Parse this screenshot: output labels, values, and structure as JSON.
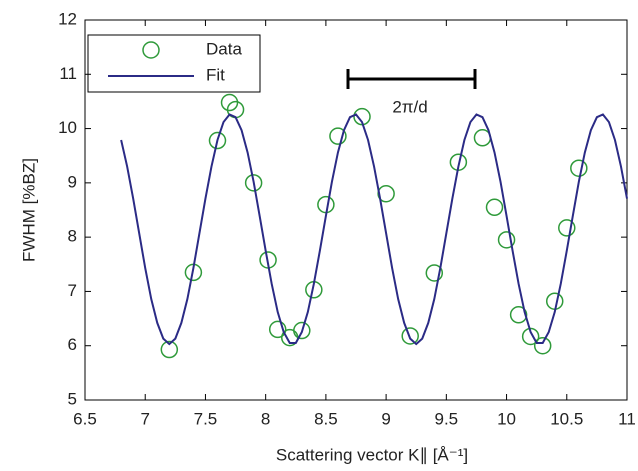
{
  "chart_data": {
    "type": "scatter",
    "x_label": "Scattering vector K∥ [Å⁻¹]",
    "y_label": "FWHM [%BZ]",
    "annotation": "2π/d",
    "xlim": [
      6.5,
      11
    ],
    "xticks": [
      6.5,
      7,
      7.5,
      8,
      8.5,
      9,
      9.5,
      10,
      10.5,
      11
    ],
    "ylim": [
      5,
      12
    ],
    "yticks": [
      5,
      6,
      7,
      8,
      9,
      10,
      11,
      12
    ],
    "legend": "upper left",
    "series": [
      {
        "name": "Data",
        "type": "scatter",
        "color": "#2f9a3a",
        "x": [
          7.2,
          7.4,
          7.6,
          7.7,
          7.75,
          7.9,
          8.02,
          8.1,
          8.2,
          8.3,
          8.4,
          8.5,
          8.6,
          8.8,
          9.0,
          9.2,
          9.4,
          9.6,
          9.8,
          9.9,
          10.0,
          10.1,
          10.2,
          10.3,
          10.4,
          10.5,
          10.6
        ],
        "values": [
          5.93,
          7.35,
          9.78,
          10.48,
          10.35,
          9.0,
          7.58,
          6.3,
          6.15,
          6.28,
          7.03,
          8.6,
          9.86,
          10.22,
          8.8,
          6.18,
          7.34,
          9.38,
          9.83,
          8.55,
          7.95,
          6.57,
          6.17,
          6.0,
          6.82,
          8.17,
          9.27
        ]
      },
      {
        "name": "Fit",
        "type": "line",
        "color": "#2b2b86",
        "x": [
          6.8,
          6.85,
          6.9,
          6.95,
          7.0,
          7.05,
          7.1,
          7.15,
          7.2,
          7.25,
          7.3,
          7.35,
          7.4,
          7.45,
          7.5,
          7.55,
          7.6,
          7.65,
          7.7,
          7.75,
          7.8,
          7.85,
          7.9,
          7.95,
          8.0,
          8.05,
          8.1,
          8.15,
          8.2,
          8.25,
          8.3,
          8.35,
          8.4,
          8.45,
          8.5,
          8.55,
          8.6,
          8.65,
          8.7,
          8.75,
          8.8,
          8.85,
          8.9,
          8.95,
          9.0,
          9.05,
          9.1,
          9.15,
          9.2,
          9.25,
          9.3,
          9.35,
          9.4,
          9.45,
          9.5,
          9.55,
          9.6,
          9.65,
          9.7,
          9.75,
          9.8,
          9.85,
          9.9,
          9.95,
          10.0,
          10.05,
          10.1,
          10.15,
          10.2,
          10.25,
          10.3,
          10.35,
          10.4,
          10.45,
          10.5,
          10.55,
          10.6,
          10.65,
          10.7,
          10.75,
          10.8,
          10.85,
          10.9,
          10.95,
          11.0
        ],
        "values": [
          9.79,
          9.3,
          8.71,
          8.07,
          7.43,
          6.86,
          6.42,
          6.13,
          6.03,
          6.13,
          6.42,
          6.86,
          7.43,
          8.07,
          8.71,
          9.3,
          9.79,
          10.12,
          10.26,
          10.21,
          9.97,
          9.56,
          9.02,
          8.39,
          7.75,
          7.14,
          6.62,
          6.25,
          6.05,
          6.05,
          6.25,
          6.62,
          7.14,
          7.75,
          8.39,
          9.02,
          9.56,
          9.97,
          10.21,
          10.26,
          10.12,
          9.79,
          9.3,
          8.71,
          8.07,
          7.43,
          6.86,
          6.42,
          6.13,
          6.03,
          6.13,
          6.42,
          6.86,
          7.43,
          8.07,
          8.71,
          9.3,
          9.79,
          10.12,
          10.26,
          10.21,
          9.97,
          9.56,
          9.02,
          8.39,
          7.75,
          7.14,
          6.62,
          6.25,
          6.05,
          6.05,
          6.25,
          6.62,
          7.14,
          7.75,
          8.39,
          9.02,
          9.56,
          9.97,
          10.21,
          10.26,
          10.12,
          9.79,
          9.3,
          8.71
        ]
      }
    ]
  }
}
